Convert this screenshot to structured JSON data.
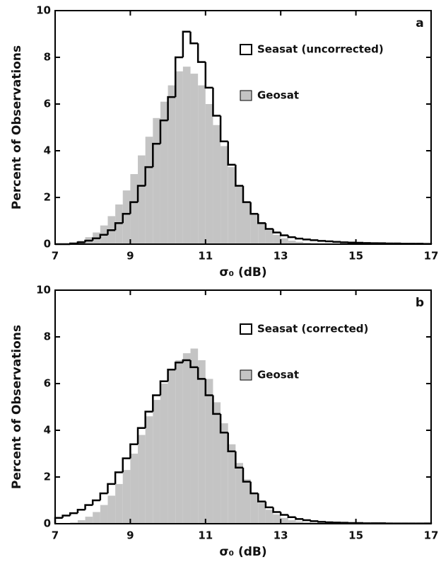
{
  "chart_data": [
    {
      "type": "histogram",
      "label": "a",
      "xlabel": "σ₀ (dB)",
      "ylabel": "Percent of Observations",
      "bins": [
        7,
        7.2,
        7.4,
        7.6,
        7.8,
        8,
        8.2,
        8.4,
        8.6,
        8.8,
        9,
        9.2,
        9.4,
        9.6,
        9.8,
        10,
        10.2,
        10.4,
        10.6,
        10.8,
        11,
        11.2,
        11.4,
        11.6,
        11.8,
        12,
        12.2,
        12.4,
        12.6,
        12.8,
        13,
        13.2,
        13.4,
        13.6,
        13.8,
        14,
        14.2,
        14.4,
        14.6,
        14.8,
        15,
        15.2,
        15.4,
        15.6,
        15.8,
        16,
        16.2,
        16.4,
        16.6,
        16.8,
        17
      ],
      "series": [
        {
          "name": "Seasat (uncorrected)",
          "color": "#000000",
          "values": [
            0,
            0,
            0.03,
            0.08,
            0.15,
            0.25,
            0.4,
            0.6,
            0.9,
            1.3,
            1.8,
            2.5,
            3.3,
            4.3,
            5.3,
            6.3,
            8.0,
            9.1,
            8.6,
            7.8,
            6.7,
            5.5,
            4.4,
            3.4,
            2.5,
            1.8,
            1.3,
            0.9,
            0.65,
            0.5,
            0.38,
            0.3,
            0.24,
            0.2,
            0.17,
            0.14,
            0.12,
            0.1,
            0.08,
            0.07,
            0.06,
            0.05,
            0.04,
            0.04,
            0.03,
            0.03,
            0.02,
            0.02,
            0.02,
            0.01
          ]
        },
        {
          "name": "Geosat",
          "color": "#c4c4c4",
          "values": [
            0,
            0,
            0.05,
            0.15,
            0.3,
            0.5,
            0.8,
            1.2,
            1.7,
            2.3,
            3.0,
            3.8,
            4.6,
            5.4,
            6.1,
            6.8,
            7.4,
            7.6,
            7.3,
            6.8,
            6.0,
            5.1,
            4.2,
            3.3,
            2.5,
            1.8,
            1.3,
            0.9,
            0.6,
            0.4,
            0.25,
            0.15,
            0.1,
            0.06,
            0.04,
            0.02,
            0.01,
            0.01,
            0,
            0,
            0,
            0,
            0,
            0,
            0,
            0,
            0,
            0,
            0,
            0
          ]
        }
      ],
      "xlim": [
        7,
        17
      ],
      "ylim": [
        0,
        10
      ],
      "xticks": [
        7,
        9,
        11,
        13,
        15,
        17
      ],
      "yticks": [
        0,
        2,
        4,
        6,
        8,
        10
      ]
    },
    {
      "type": "histogram",
      "label": "b",
      "xlabel": "σ₀ (dB)",
      "ylabel": "Percent of Observations",
      "bins": [
        7,
        7.2,
        7.4,
        7.6,
        7.8,
        8,
        8.2,
        8.4,
        8.6,
        8.8,
        9,
        9.2,
        9.4,
        9.6,
        9.8,
        10,
        10.2,
        10.4,
        10.6,
        10.8,
        11,
        11.2,
        11.4,
        11.6,
        11.8,
        12,
        12.2,
        12.4,
        12.6,
        12.8,
        13,
        13.2,
        13.4,
        13.6,
        13.8,
        14,
        14.2,
        14.4,
        14.6,
        14.8,
        15,
        15.2,
        15.4,
        15.6,
        15.8,
        16,
        16.2,
        16.4,
        16.6,
        16.8,
        17
      ],
      "series": [
        {
          "name": "Seasat (corrected)",
          "color": "#000000",
          "values": [
            0.25,
            0.35,
            0.45,
            0.6,
            0.8,
            1.0,
            1.3,
            1.7,
            2.2,
            2.8,
            3.4,
            4.1,
            4.8,
            5.5,
            6.1,
            6.6,
            6.9,
            7.0,
            6.7,
            6.2,
            5.5,
            4.7,
            3.9,
            3.1,
            2.4,
            1.8,
            1.3,
            0.95,
            0.7,
            0.5,
            0.38,
            0.28,
            0.2,
            0.15,
            0.11,
            0.08,
            0.06,
            0.05,
            0.04,
            0.03,
            0.03,
            0.02,
            0.02,
            0.02,
            0.01,
            0.01,
            0.01,
            0.01,
            0.01,
            0.01
          ]
        },
        {
          "name": "Geosat",
          "color": "#c4c4c4",
          "values": [
            0,
            0,
            0.05,
            0.15,
            0.3,
            0.5,
            0.8,
            1.2,
            1.7,
            2.3,
            3.0,
            3.8,
            4.6,
            5.3,
            6.0,
            6.6,
            7.0,
            7.3,
            7.5,
            7.0,
            6.2,
            5.2,
            4.3,
            3.4,
            2.6,
            1.9,
            1.3,
            0.9,
            0.6,
            0.4,
            0.25,
            0.15,
            0.1,
            0.06,
            0.04,
            0.02,
            0.01,
            0.01,
            0,
            0,
            0,
            0,
            0,
            0,
            0,
            0,
            0,
            0,
            0,
            0
          ]
        }
      ],
      "xlim": [
        7,
        17
      ],
      "ylim": [
        0,
        10
      ],
      "xticks": [
        7,
        9,
        11,
        13,
        15,
        17
      ],
      "yticks": [
        0,
        2,
        4,
        6,
        8,
        10
      ]
    }
  ]
}
